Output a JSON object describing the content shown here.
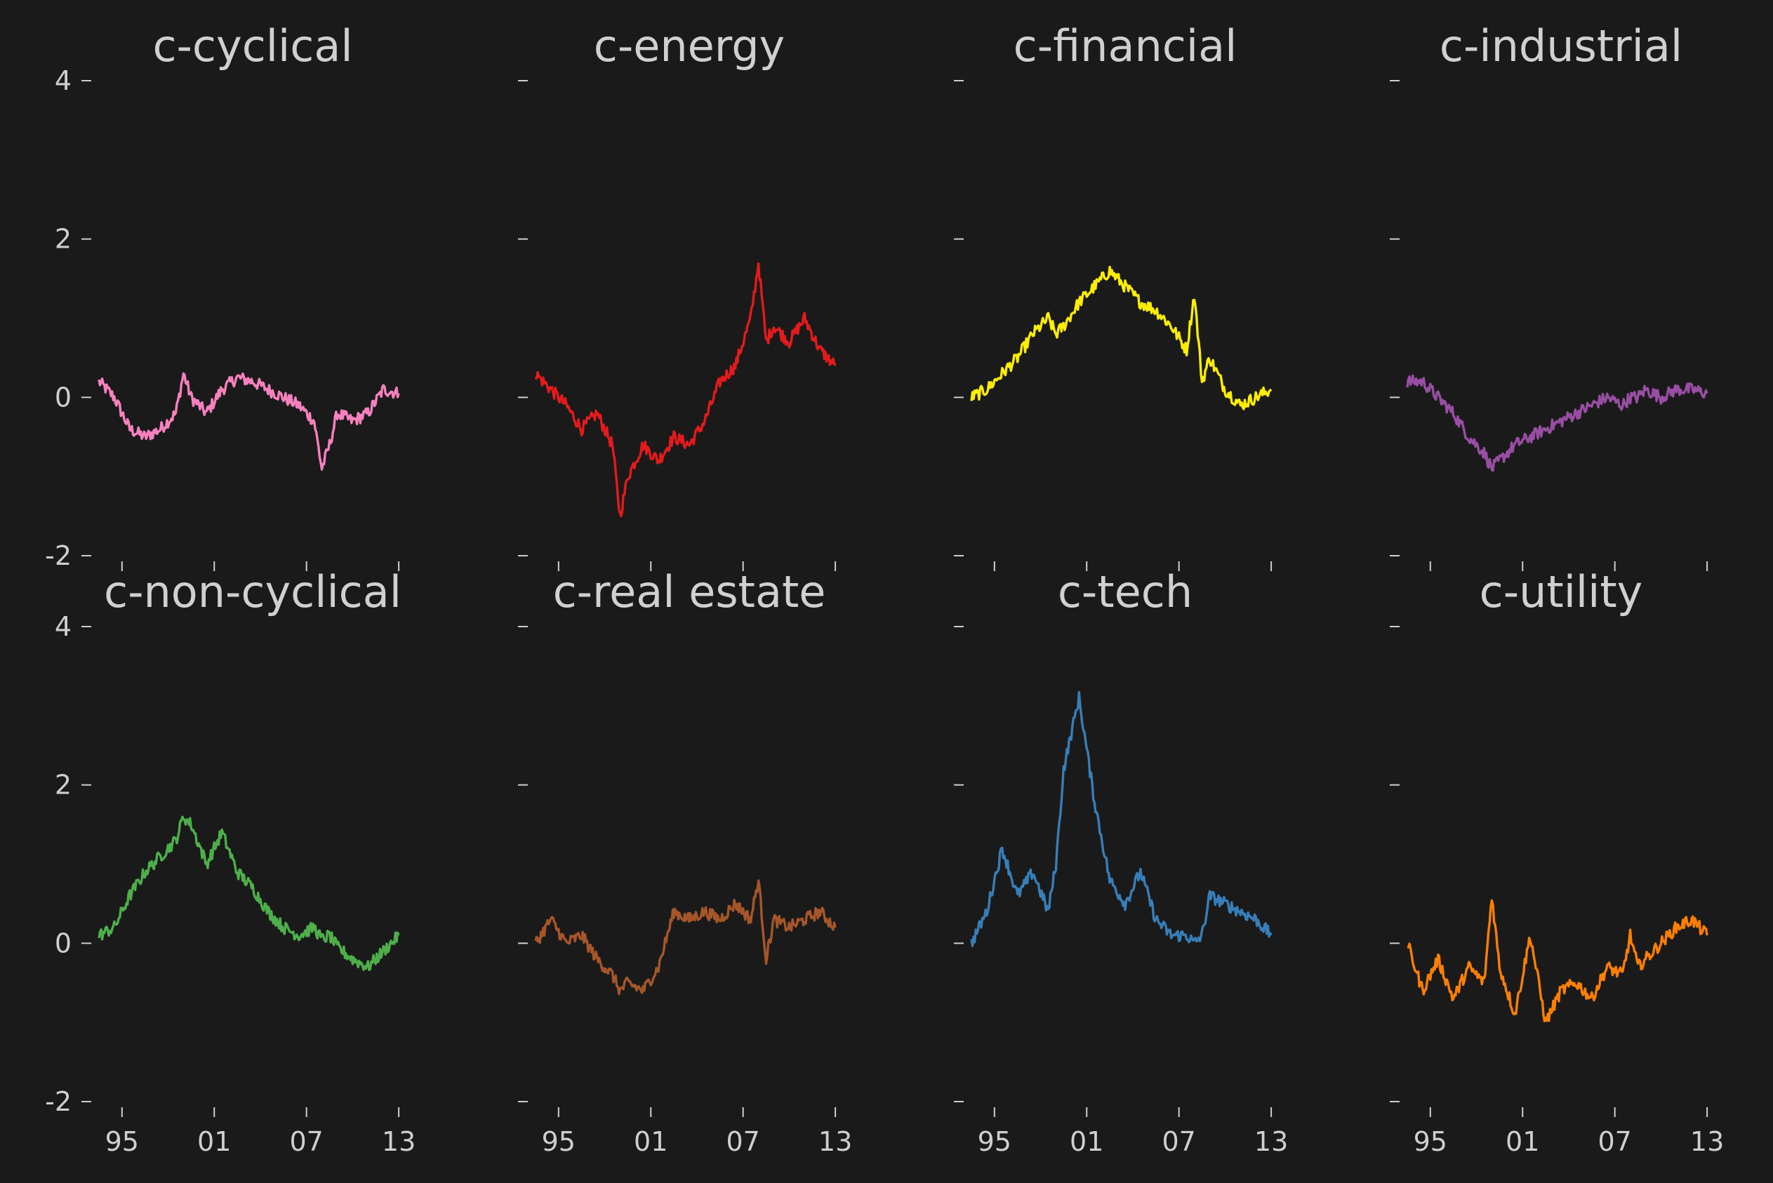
{
  "chart_data": [
    {
      "type": "line",
      "title": "c-cyclical",
      "color": "#f781bf",
      "x": [
        1993.5,
        1994.5,
        1995.5,
        1996.5,
        1997.5,
        1998.5,
        1999,
        1999.5,
        2000.5,
        2001.5,
        2002.5,
        2003.5,
        2004.5,
        2005.5,
        2006.5,
        2007.5,
        2008.0,
        2008.5,
        2009,
        2010,
        2011,
        2012,
        2013.0
      ],
      "y": [
        0.2,
        0.0,
        -0.4,
        -0.5,
        -0.4,
        -0.2,
        0.3,
        0.0,
        -0.2,
        0.1,
        0.25,
        0.2,
        0.1,
        0.0,
        -0.1,
        -0.3,
        -0.9,
        -0.6,
        -0.2,
        -0.3,
        -0.2,
        0.1,
        0.05
      ],
      "ylim": [
        -2,
        4
      ],
      "xlim": [
        1993,
        2014
      ],
      "yticks": [
        "4",
        "2",
        "0",
        "-2"
      ],
      "xticks": []
    },
    {
      "type": "line",
      "title": "c-energy",
      "color": "#e41a1c",
      "x": [
        1993.5,
        1994.5,
        1995.5,
        1996.5,
        1997.5,
        1998.5,
        1999,
        1999.5,
        2000.5,
        2001.5,
        2002.5,
        2003.5,
        2004.5,
        2005.5,
        2006.5,
        2007.5,
        2008.0,
        2008.5,
        2009,
        2010,
        2011,
        2012,
        2013.0
      ],
      "y": [
        0.3,
        0.1,
        -0.1,
        -0.4,
        -0.2,
        -0.6,
        -1.5,
        -1.0,
        -0.6,
        -0.8,
        -0.5,
        -0.6,
        -0.3,
        0.2,
        0.4,
        1.0,
        1.7,
        0.7,
        0.9,
        0.7,
        1.0,
        0.6,
        0.4
      ],
      "ylim": [
        -2,
        4
      ],
      "xlim": [
        1993,
        2014
      ],
      "yticks": [],
      "xticks": []
    },
    {
      "type": "line",
      "title": "c-financial",
      "color": "#ffee00",
      "x": [
        1993.5,
        1994.5,
        1995.5,
        1996.5,
        1997.5,
        1998.5,
        1999,
        1999.5,
        2000.5,
        2001.5,
        2002.5,
        2003.5,
        2004.5,
        2005.5,
        2006.5,
        2007.5,
        2008.0,
        2008.5,
        2009,
        2010,
        2011,
        2012,
        2013.0
      ],
      "y": [
        0.0,
        0.1,
        0.3,
        0.5,
        0.8,
        1.0,
        0.8,
        0.9,
        1.2,
        1.4,
        1.6,
        1.4,
        1.2,
        1.1,
        0.9,
        0.6,
        1.3,
        0.2,
        0.5,
        0.1,
        -0.1,
        0.0,
        0.1
      ],
      "ylim": [
        -2,
        4
      ],
      "xlim": [
        1993,
        2014
      ],
      "yticks": [],
      "xticks": []
    },
    {
      "type": "line",
      "title": "c-industrial",
      "color": "#984ea3",
      "x": [
        1993.5,
        1994.5,
        1995.5,
        1996.5,
        1997.5,
        1998.5,
        1999,
        1999.5,
        2000.5,
        2001.5,
        2002.5,
        2003.5,
        2004.5,
        2005.5,
        2006.5,
        2007.5,
        2008.0,
        2008.5,
        2009,
        2010,
        2011,
        2012,
        2013.0
      ],
      "y": [
        0.2,
        0.2,
        0.0,
        -0.2,
        -0.5,
        -0.7,
        -0.9,
        -0.8,
        -0.6,
        -0.5,
        -0.4,
        -0.3,
        -0.2,
        -0.1,
        0.0,
        -0.1,
        0.0,
        0.0,
        0.1,
        0.0,
        0.1,
        0.1,
        0.05
      ],
      "ylim": [
        -2,
        4
      ],
      "xlim": [
        1993,
        2014
      ],
      "yticks": [],
      "xticks": []
    },
    {
      "type": "line",
      "title": "c-non-cyclical",
      "color": "#4daf4a",
      "x": [
        1993.5,
        1994.5,
        1995.5,
        1996.5,
        1997.5,
        1998.5,
        1999,
        1999.5,
        2000.5,
        2001.5,
        2002.5,
        2003.5,
        2004.5,
        2005.5,
        2006.5,
        2007.5,
        2008.0,
        2008.5,
        2009,
        2010,
        2011,
        2012,
        2013.0
      ],
      "y": [
        0.1,
        0.2,
        0.6,
        0.9,
        1.1,
        1.3,
        1.6,
        1.5,
        1.0,
        1.4,
        0.9,
        0.7,
        0.4,
        0.2,
        0.1,
        0.2,
        0.05,
        0.1,
        -0.05,
        -0.2,
        -0.3,
        -0.1,
        0.1
      ],
      "ylim": [
        -2,
        4
      ],
      "xlim": [
        1993,
        2014
      ],
      "yticks": [
        "4",
        "2",
        "0",
        "-2"
      ],
      "xticks": [
        "95",
        "01",
        "07",
        "13"
      ]
    },
    {
      "type": "line",
      "title": "c-real estate",
      "color": "#a65628",
      "x": [
        1993.5,
        1994.5,
        1995.5,
        1996.5,
        1997.5,
        1998.5,
        1999,
        1999.5,
        2000.5,
        2001.5,
        2002.5,
        2003.5,
        2004.5,
        2005.5,
        2006.5,
        2007.5,
        2008.0,
        2008.5,
        2009,
        2010,
        2011,
        2012,
        2013.0
      ],
      "y": [
        0.0,
        0.3,
        0.0,
        0.1,
        -0.2,
        -0.4,
        -0.6,
        -0.5,
        -0.6,
        -0.3,
        0.4,
        0.3,
        0.4,
        0.3,
        0.5,
        0.3,
        0.8,
        -0.2,
        0.3,
        0.2,
        0.3,
        0.4,
        0.2
      ],
      "ylim": [
        -2,
        4
      ],
      "xlim": [
        1993,
        2014
      ],
      "yticks": [],
      "xticks": [
        "95",
        "01",
        "07",
        "13"
      ]
    },
    {
      "type": "line",
      "title": "c-tech",
      "color": "#377eb8",
      "x": [
        1993.5,
        1994.5,
        1995.5,
        1996.5,
        1997.5,
        1998.5,
        1999,
        1999.5,
        2000.5,
        2001.5,
        2002.5,
        2003.5,
        2004.5,
        2005.5,
        2006.5,
        2007.5,
        2008.0,
        2008.5,
        2009,
        2010,
        2011,
        2012,
        2013.0
      ],
      "y": [
        0.0,
        0.4,
        1.2,
        0.6,
        0.9,
        0.4,
        1.0,
        2.2,
        3.1,
        1.8,
        0.8,
        0.5,
        0.9,
        0.3,
        0.1,
        0.1,
        0.0,
        0.1,
        0.6,
        0.5,
        0.4,
        0.3,
        0.1
      ],
      "ylim": [
        -2,
        4
      ],
      "xlim": [
        1993,
        2014
      ],
      "yticks": [],
      "xticks": [
        "95",
        "01",
        "07",
        "13"
      ]
    },
    {
      "type": "line",
      "title": "c-utility",
      "color": "#ff7f00",
      "x": [
        1993.5,
        1994.5,
        1995.5,
        1996.5,
        1997.5,
        1998.5,
        1999,
        1999.5,
        2000.5,
        2001.5,
        2002.5,
        2003.5,
        2004.5,
        2005.5,
        2006.5,
        2007.5,
        2008.0,
        2008.5,
        2009,
        2010,
        2011,
        2012,
        2013.0
      ],
      "y": [
        0.0,
        -0.6,
        -0.2,
        -0.7,
        -0.3,
        -0.5,
        0.6,
        -0.3,
        -0.9,
        0.1,
        -1.0,
        -0.6,
        -0.5,
        -0.7,
        -0.3,
        -0.4,
        0.1,
        -0.3,
        -0.2,
        0.0,
        0.2,
        0.3,
        0.1
      ],
      "ylim": [
        -2,
        4
      ],
      "xlim": [
        1993,
        2014
      ],
      "yticks": [],
      "xticks": [
        "95",
        "01",
        "07",
        "13"
      ]
    }
  ]
}
